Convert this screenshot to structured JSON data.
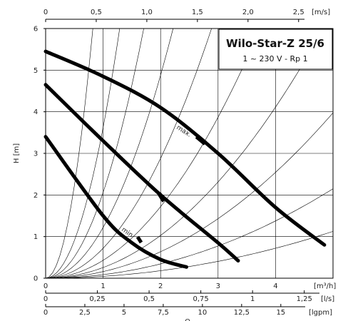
{
  "chart_data": {
    "type": "line",
    "title": "Wilo-Star-Z 25/6",
    "subtitle": "1 ~ 230 V - Rp 1",
    "ylabel": "H [m]",
    "xlabel": "Q",
    "ylim": [
      0,
      6
    ],
    "xlim": [
      0,
      5
    ],
    "yticks": [
      "0",
      "1",
      "2",
      "3",
      "4",
      "5",
      "6"
    ],
    "xticks": [
      "0",
      "1",
      "2",
      "3",
      "4"
    ],
    "x_unit": "[m³/h]",
    "top_axis": {
      "unit": "[m/s]",
      "ticks": [
        "0",
        "0,5",
        "1,0",
        "1,5",
        "2,0",
        "2,5"
      ]
    },
    "ls_axis": {
      "unit": "[l/s]",
      "ticks": [
        "0",
        "0,25",
        "0,5",
        "0,75",
        "1",
        "1,25"
      ]
    },
    "lgpm_axis": {
      "unit": "[lgpm]",
      "ticks": [
        "0",
        "2,5",
        "5",
        "7,5",
        "10",
        "12,5",
        "15"
      ]
    },
    "curve_labels": {
      "max": "max.",
      "min": "min"
    },
    "series": [
      {
        "x": [
          0,
          1,
          2,
          3,
          4,
          4.85
        ],
        "y": [
          5.45,
          4.85,
          4.1,
          3.0,
          1.7,
          0.8
        ]
      },
      {
        "x": [
          0,
          1,
          2,
          3,
          3.35
        ],
        "y": [
          4.65,
          3.3,
          2.0,
          0.85,
          0.42
        ]
      },
      {
        "x": [
          0,
          1,
          1.5,
          2,
          2.45
        ],
        "y": [
          3.4,
          1.5,
          0.85,
          0.45,
          0.27
        ]
      }
    ]
  }
}
